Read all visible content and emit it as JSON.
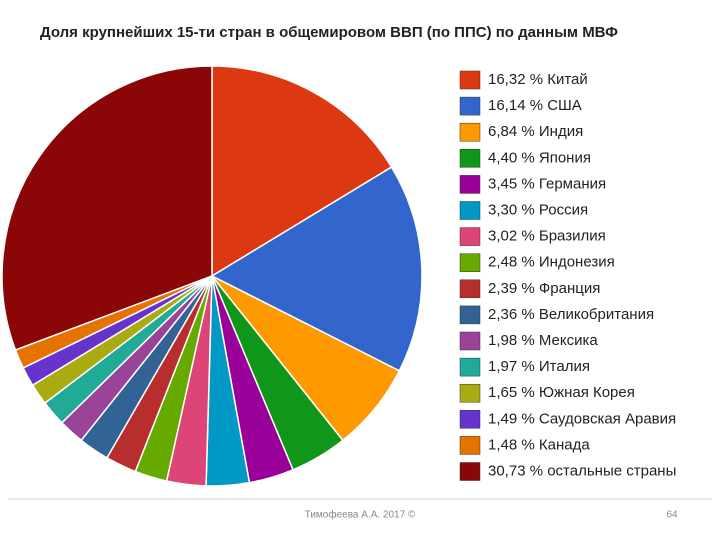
{
  "chart_data": {
    "type": "pie",
    "title": "Доля крупнейших 15-ти стран в общемировом ВВП (по ППС) по данным МВФ",
    "categories": [
      "Китай",
      "США",
      "Индия",
      "Япония",
      "Германия",
      "Россия",
      "Бразилия",
      "Индонезия",
      "Франция",
      "Великобритания",
      "Мексика",
      "Италия",
      "Южная Корея",
      "Саудовская Аравия",
      "Канада",
      "остальные страны"
    ],
    "values": [
      16.32,
      16.14,
      6.84,
      4.4,
      3.45,
      3.3,
      3.02,
      2.48,
      2.39,
      2.36,
      1.98,
      1.97,
      1.65,
      1.49,
      1.48,
      30.73
    ],
    "value_labels": [
      "16,32 %",
      "16,14 %",
      "6,84 %",
      "4,40 %",
      "3,45 %",
      "3,30 %",
      "3,02 %",
      "2,48 %",
      "2,39 %",
      "2,36 %",
      "1,98 %",
      "1,97 %",
      "1,65 %",
      "1,49 %",
      "1,48 %",
      "30,73 %"
    ],
    "colors": [
      "#dc3912",
      "#3366cc",
      "#ff9900",
      "#109618",
      "#990099",
      "#0099c6",
      "#dd4477",
      "#66aa00",
      "#b82e2e",
      "#316395",
      "#994499",
      "#22aa99",
      "#aaaa11",
      "#6633cc",
      "#e67300",
      "#8b0707"
    ],
    "legend": "right"
  },
  "footer": {
    "author": "Тимофеева А.А. 2017 ©",
    "page": "64"
  }
}
